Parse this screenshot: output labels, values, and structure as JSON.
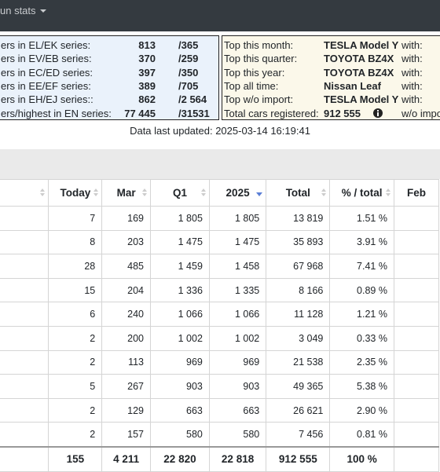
{
  "nav": {
    "menu": "un stats"
  },
  "series_box": {
    "rows": [
      {
        "label": "ers in EL/EK series:",
        "count": "813",
        "total": "/365"
      },
      {
        "label": "ers in EV/EB series:",
        "count": "370",
        "total": "/259"
      },
      {
        "label": "ers in EC/ED series:",
        "count": "397",
        "total": "/350"
      },
      {
        "label": "ers in EE/EF series:",
        "count": "389",
        "total": "/705"
      },
      {
        "label": "ers in EH/EJ series::",
        "count": "862",
        "total": "/2 564"
      },
      {
        "label": "ers/highest in EN series:",
        "count": "77 445",
        "total": "/31531"
      }
    ]
  },
  "top_box": {
    "rows": [
      {
        "label": "Top this month:",
        "value": "TESLA Model Y",
        "with": "with:"
      },
      {
        "label": "Top this quarter:",
        "value": "TOYOTA BZ4X",
        "with": "with:"
      },
      {
        "label": "Top this year:",
        "value": "TOYOTA BZ4X",
        "with": "with:"
      },
      {
        "label": "Top all time:",
        "value": "Nissan Leaf",
        "with": "with:"
      },
      {
        "label": "Top w/o import:",
        "value": "TESLA Model Y",
        "with": "with:"
      },
      {
        "label": "Total cars registered:",
        "value": "912 555",
        "with": "w/o impo"
      }
    ]
  },
  "updated": "Data last updated: 2025-03-14 16:19:41",
  "table": {
    "headers": [
      "Today",
      "Mar",
      "Q1",
      "2025",
      "Total",
      "% / total",
      "Feb"
    ],
    "rows": [
      [
        "7",
        "169",
        "1 805",
        "1 805",
        "13 819",
        "1.51 %"
      ],
      [
        "8",
        "203",
        "1 475",
        "1 475",
        "35 893",
        "3.91 %"
      ],
      [
        "28",
        "485",
        "1 459",
        "1 458",
        "67 968",
        "7.41 %"
      ],
      [
        "15",
        "204",
        "1 336",
        "1 335",
        "8 166",
        "0.89 %"
      ],
      [
        "6",
        "240",
        "1 066",
        "1 066",
        "11 128",
        "1.21 %"
      ],
      [
        "2",
        "200",
        "1 002",
        "1 002",
        "3 049",
        "0.33 %"
      ],
      [
        "2",
        "113",
        "969",
        "969",
        "21 538",
        "2.35 %"
      ],
      [
        "5",
        "267",
        "903",
        "903",
        "49 365",
        "5.38 %"
      ],
      [
        "2",
        "129",
        "663",
        "663",
        "26 621",
        "2.90 %"
      ],
      [
        "2",
        "157",
        "580",
        "580",
        "7 456",
        "0.81 %"
      ]
    ],
    "totals": [
      "155",
      "4 211",
      "22 820",
      "22 818",
      "912 555",
      "100 %"
    ]
  }
}
